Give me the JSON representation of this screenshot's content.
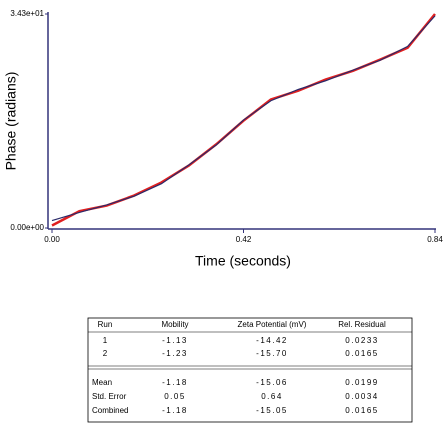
{
  "chart_data": {
    "type": "line",
    "y_label": "Phase (radians)",
    "x_label": "Time (seconds)",
    "x": [
      0,
      0.06,
      0.12,
      0.18,
      0.24,
      0.3,
      0.36,
      0.42,
      0.48,
      0.54,
      0.6,
      0.66,
      0.72,
      0.78,
      0.84
    ],
    "series": [
      {
        "color": "#e02020",
        "values": [
          0.4,
          2.7,
          3.6,
          5.2,
          7.3,
          10.0,
          13.4,
          17.2,
          20.6,
          22.0,
          23.8,
          25.2,
          27.0,
          28.9,
          34.3
        ]
      },
      {
        "color": "#2a2a6a",
        "values": [
          1.2,
          2.5,
          3.7,
          5.1,
          7.1,
          10.1,
          13.3,
          17.3,
          20.4,
          22.2,
          23.6,
          25.3,
          26.9,
          29.1,
          34.0
        ]
      }
    ],
    "xlim": [
      0,
      0.84
    ],
    "ylim": [
      0,
      34.3
    ],
    "xticks": [
      {
        "value": 0,
        "label": "0.00"
      },
      0.42,
      0.84
    ],
    "yticks": [
      {
        "value": 0,
        "label": "0.00e+00"
      },
      {
        "value": 34.3,
        "label": "3.43e+01"
      }
    ]
  },
  "table": {
    "header": [
      "Run",
      "Mobility",
      "Zeta Potential (mV)",
      "Rel. Residual"
    ],
    "runs": [
      [
        "1",
        "-1.13",
        "-14.42",
        "0.0233"
      ],
      [
        "2",
        "-1.23",
        "-15.70",
        "0.0165"
      ]
    ],
    "summary": [
      [
        "Mean",
        "-1.18",
        "-15.06",
        "0.0199"
      ],
      [
        "Std. Error",
        "0.05",
        "0.64",
        "0.0034"
      ],
      [
        "Combined",
        "-1.18",
        "-15.05",
        "0.0165"
      ]
    ]
  }
}
